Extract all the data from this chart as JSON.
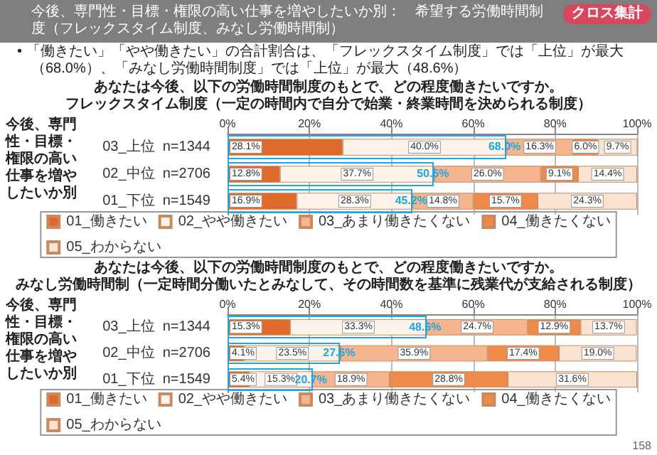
{
  "chart_data": [
    {
      "type": "bar",
      "orientation": "horizontal",
      "stacked": true,
      "title": "あなたは今後、以下の労働時間制度のもとで、どの程度働きたいですか。",
      "subtitle": "フレックスタイム制度（一定の時間内で自分で始業・終業時間を決められる制度）",
      "ylabel": "今後、専門性・目標・権限の高い仕事を増やしたいか別",
      "categories": [
        "03_上位  n=1344",
        "02_中位  n=2706",
        "01_下位  n=1549"
      ],
      "series": [
        {
          "name": "01_働きたい",
          "color": "#e06a2c",
          "values": [
            28.1,
            12.8,
            16.9
          ],
          "value_labels": [
            "28.1%",
            "12.8%",
            "16.9%"
          ]
        },
        {
          "name": "02_やや働きたい",
          "color": "#fdf3ea",
          "values": [
            40.0,
            37.7,
            28.3
          ],
          "value_labels": [
            "40.0%",
            "37.7%",
            "28.3%"
          ]
        },
        {
          "name": "03_あまり働きたくない",
          "color": "#f5b58e",
          "values": [
            16.3,
            26.0,
            14.8
          ],
          "value_labels": [
            "16.3%",
            "26.0%",
            "14.8%"
          ]
        },
        {
          "name": "04_働きたくない",
          "color": "#f08a4b",
          "values": [
            6.0,
            9.1,
            15.7
          ],
          "value_labels": [
            "6.0%",
            "9.1%",
            "15.7%"
          ]
        },
        {
          "name": "05_わからない",
          "color": "#fbe3d2",
          "values": [
            9.7,
            14.4,
            24.3
          ],
          "value_labels": [
            "9.7%",
            "14.4%",
            "24.3%"
          ]
        }
      ],
      "xlim": [
        0,
        100
      ],
      "xticks": [
        {
          "value": 0,
          "label": "0%"
        },
        {
          "value": 20,
          "label": "20%"
        },
        {
          "value": 40,
          "label": "40%"
        },
        {
          "value": 60,
          "label": "60%"
        },
        {
          "value": 80,
          "label": "80%"
        },
        {
          "value": 100,
          "label": "100%"
        }
      ],
      "grid": "x",
      "legend": "bottom",
      "annotations": [
        "クロス集計",
        "今後、専門性・目標・権限の高い仕事を増やしたいか別：　希望する労働時間制度（フレックスタイム制度、みなし労働時間制）",
        "• 「働きたい」「やや働きたい」の合計割合は、「フレックスタイム制度」では「上位」が最大（68.0%）、「みなし労働時間制度」では「上位」が最大（48.6%）",
        {
          "text": "68.0%",
          "x": 68.0,
          "y": "03_上位  n=1344"
        },
        {
          "text": "50.5%",
          "x": 50.5,
          "y": "02_中位  n=2706"
        },
        {
          "text": "45.2%",
          "x": 45.2,
          "y": "01_下位  n=1549"
        }
      ]
    },
    {
      "type": "bar",
      "orientation": "horizontal",
      "stacked": true,
      "title": "あなたは今後、以下の労働時間制度のもとで、どの程度働きたいですか。",
      "subtitle": "みなし労働時間制（一定時間分働いたとみなして、その時間数を基準に残業代が支給される制度）",
      "ylabel": "今後、専門性・目標・権限の高い仕事を増やしたいか別",
      "categories": [
        "03_上位  n=1344",
        "02_中位  n=2706",
        "01_下位  n=1549"
      ],
      "series": [
        {
          "name": "01_働きたい",
          "color": "#e06a2c",
          "values": [
            15.3,
            4.1,
            5.4
          ],
          "value_labels": [
            "15.3%",
            "4.1%",
            "5.4%"
          ]
        },
        {
          "name": "02_やや働きたい",
          "color": "#fdf3ea",
          "values": [
            33.3,
            23.5,
            15.3
          ],
          "value_labels": [
            "33.3%",
            "23.5%",
            "15.3%"
          ]
        },
        {
          "name": "03_あまり働きたくない",
          "color": "#f5b58e",
          "values": [
            24.7,
            35.9,
            18.9
          ],
          "value_labels": [
            "24.7%",
            "35.9%",
            "18.9%"
          ]
        },
        {
          "name": "04_働きたくない",
          "color": "#f08a4b",
          "values": [
            12.9,
            17.4,
            28.8
          ],
          "value_labels": [
            "12.9%",
            "17.4%",
            "28.8%"
          ]
        },
        {
          "name": "05_わからない",
          "color": "#fbe3d2",
          "values": [
            13.7,
            19.0,
            31.6
          ],
          "value_labels": [
            "13.7%",
            "19.0%",
            "31.6%"
          ]
        }
      ],
      "xlim": [
        0,
        100
      ],
      "xticks": [
        {
          "value": 0,
          "label": "0%"
        },
        {
          "value": 20,
          "label": "20%"
        },
        {
          "value": 40,
          "label": "40%"
        },
        {
          "value": 60,
          "label": "60%"
        },
        {
          "value": 80,
          "label": "80%"
        },
        {
          "value": 100,
          "label": "100%"
        }
      ],
      "grid": "x",
      "legend": "bottom",
      "annotations": [
        "158",
        {
          "text": "48.6%",
          "x": 48.6,
          "y": "03_上位  n=1344"
        },
        {
          "text": "27.6%",
          "x": 27.6,
          "y": "02_中位  n=2706"
        },
        {
          "text": "20.7%",
          "x": 20.7,
          "y": "01_下位  n=1549"
        }
      ]
    }
  ]
}
